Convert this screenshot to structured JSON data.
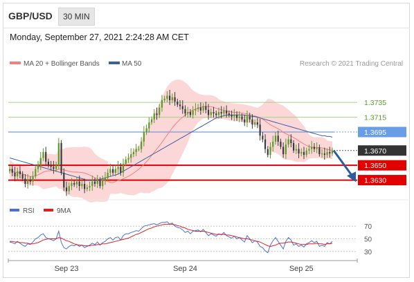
{
  "header": {
    "pair": "GBP/USD",
    "timeframe": "30 MIN",
    "datetime": "Monday, September 27, 2021 2:24:28 AM CET"
  },
  "legend": {
    "ma20": "MA 20 + Bollinger Bands",
    "ma50": "MA 50",
    "source": "Research © 2021 Trading Central",
    "rsi": "RSI",
    "rsi_ma": "9MA"
  },
  "colors": {
    "ma20": "#f08080",
    "ma50": "#3b5fa0",
    "band": "#fbd0d0",
    "up": "#5a9a2a",
    "down": "#3a3a3a",
    "resistance": "#a8d08d",
    "pivot": "#6a9de8",
    "support": "#e00000",
    "rsi": "#4a6fd8",
    "rsi_ma": "#e02020",
    "arrow": "#2b5c9e"
  },
  "chart_data": [
    {
      "type": "candlestick",
      "ylim": [
        1.361,
        1.378
      ],
      "x_ticks": [
        {
          "label": "Sep 23",
          "index": 22
        },
        {
          "label": "Sep 24",
          "index": 68
        },
        {
          "label": "Sep 25",
          "index": 113
        }
      ],
      "levels": [
        {
          "value": 1.3735,
          "label": "1.3735",
          "role": "resistance"
        },
        {
          "value": 1.3715,
          "label": "1.3715",
          "role": "resistance"
        },
        {
          "value": 1.3695,
          "label": "1.3695",
          "role": "pivot"
        },
        {
          "value": 1.367,
          "label": "1.3670",
          "role": "last"
        },
        {
          "value": 1.365,
          "label": "1.3650",
          "role": "support"
        },
        {
          "value": 1.363,
          "label": "1.3630",
          "role": "support"
        }
      ],
      "close": [
        1.3645,
        1.364,
        1.3635,
        1.3642,
        1.3638,
        1.3632,
        1.3625,
        1.363,
        1.3628,
        1.3635,
        1.3645,
        1.365,
        1.366,
        1.3668,
        1.3655,
        1.365,
        1.3648,
        1.3645,
        1.365,
        1.368,
        1.364,
        1.362,
        1.3615,
        1.3622,
        1.3626,
        1.3624,
        1.3628,
        1.3622,
        1.3625,
        1.3618,
        1.362,
        1.3622,
        1.3628,
        1.3625,
        1.363,
        1.3622,
        1.363,
        1.3633,
        1.364,
        1.3645,
        1.364,
        1.3645,
        1.3648,
        1.364,
        1.3652,
        1.3658,
        1.366,
        1.3665,
        1.3668,
        1.3672,
        1.3672,
        1.3682,
        1.3695,
        1.37,
        1.3708,
        1.3712,
        1.372,
        1.3718,
        1.3728,
        1.3738,
        1.374,
        1.3744,
        1.3738,
        1.3742,
        1.3736,
        1.3732,
        1.373,
        1.3726,
        1.372,
        1.3722,
        1.3718,
        1.3724,
        1.3726,
        1.3728,
        1.3724,
        1.373,
        1.3725,
        1.3718,
        1.3722,
        1.372,
        1.3718,
        1.3722,
        1.372,
        1.3724,
        1.372,
        1.3718,
        1.3716,
        1.3718,
        1.3714,
        1.3716,
        1.3712,
        1.3708,
        1.3716,
        1.3712,
        1.3705,
        1.3708,
        1.3705,
        1.369,
        1.3685,
        1.3672,
        1.3664,
        1.3675,
        1.3682,
        1.369,
        1.3682,
        1.3675,
        1.3665,
        1.3678,
        1.3685,
        1.368,
        1.367,
        1.3672,
        1.3666,
        1.3668,
        1.3664,
        1.367,
        1.3672,
        1.3675,
        1.3672,
        1.3674,
        1.3665,
        1.3666,
        1.3664,
        1.3668,
        1.3666,
        1.367
      ],
      "ma50": [
        1.366,
        1.3659,
        1.3658,
        1.3657,
        1.3656,
        1.3655,
        1.3654,
        1.3653,
        1.3652,
        1.3651,
        1.365,
        1.3649,
        1.3648,
        1.3647,
        1.3646,
        1.3645,
        1.3644,
        1.3643,
        1.3642,
        1.3641,
        1.364,
        1.3639,
        1.3638,
        1.3637,
        1.3636,
        1.3635,
        1.3634,
        1.3633,
        1.3632,
        1.3631,
        1.363,
        1.363,
        1.363,
        1.363,
        1.363,
        1.3631,
        1.3632,
        1.3633,
        1.3634,
        1.3635,
        1.3636,
        1.3637,
        1.3638,
        1.364,
        1.3642,
        1.3644,
        1.3646,
        1.3648,
        1.365,
        1.3652,
        1.3654,
        1.3656,
        1.3658,
        1.366,
        1.3662,
        1.3664,
        1.3666,
        1.3668,
        1.367,
        1.3672,
        1.3674,
        1.3676,
        1.3678,
        1.368,
        1.3682,
        1.3684,
        1.3686,
        1.3688,
        1.369,
        1.3692,
        1.3694,
        1.3696,
        1.3698,
        1.37,
        1.3702,
        1.3704,
        1.3706,
        1.3708,
        1.371,
        1.3712,
        1.3714,
        1.3715,
        1.3716,
        1.3717,
        1.3718,
        1.3718,
        1.3718,
        1.3718,
        1.3718,
        1.3718,
        1.3718,
        1.3718,
        1.3717,
        1.3717,
        1.3716,
        1.3716,
        1.3715,
        1.3714,
        1.3713,
        1.3712,
        1.3711,
        1.371,
        1.3709,
        1.3708,
        1.3707,
        1.3706,
        1.3705,
        1.3704,
        1.3703,
        1.3702,
        1.3701,
        1.37,
        1.3699,
        1.3698,
        1.3697,
        1.3696,
        1.3695,
        1.3694,
        1.3693,
        1.3692,
        1.3691,
        1.369,
        1.369,
        1.3689,
        1.3689,
        1.3688
      ]
    },
    {
      "type": "line",
      "name": "RSI",
      "ylim": [
        20,
        80
      ],
      "y_ticks": [
        70,
        50,
        30
      ],
      "rsi": [
        45,
        44,
        42,
        46,
        43,
        40,
        38,
        42,
        41,
        45,
        50,
        52,
        56,
        58,
        52,
        50,
        49,
        47,
        50,
        62,
        44,
        36,
        34,
        38,
        40,
        39,
        41,
        38,
        40,
        36,
        38,
        40,
        43,
        41,
        45,
        40,
        44,
        46,
        50,
        52,
        48,
        52,
        53,
        48,
        55,
        58,
        58,
        60,
        61,
        63,
        62,
        66,
        70,
        71,
        72,
        73,
        74,
        72,
        74,
        76,
        76,
        77,
        73,
        75,
        70,
        68,
        67,
        64,
        60,
        62,
        58,
        62,
        63,
        64,
        61,
        65,
        60,
        55,
        58,
        56,
        54,
        58,
        56,
        60,
        55,
        53,
        51,
        54,
        50,
        52,
        48,
        45,
        55,
        50,
        44,
        47,
        45,
        38,
        36,
        31,
        28,
        40,
        47,
        52,
        46,
        40,
        34,
        46,
        52,
        48,
        40,
        42,
        38,
        40,
        37,
        42,
        44,
        47,
        44,
        46,
        38,
        40,
        38,
        44,
        42,
        46
      ],
      "rsi_ma": [
        46,
        46,
        45,
        45,
        44,
        44,
        43,
        43,
        42,
        42,
        43,
        44,
        46,
        48,
        49,
        50,
        50,
        50,
        50,
        52,
        51,
        49,
        47,
        46,
        44,
        42,
        41,
        40,
        40,
        39,
        39,
        39,
        40,
        40,
        41,
        41,
        42,
        42,
        43,
        44,
        45,
        46,
        47,
        48,
        49,
        50,
        51,
        53,
        55,
        57,
        58,
        60,
        62,
        64,
        66,
        67,
        69,
        70,
        71,
        72,
        73,
        73,
        73,
        73,
        72,
        71,
        70,
        68,
        67,
        65,
        64,
        63,
        62,
        62,
        62,
        62,
        61,
        60,
        59,
        58,
        57,
        57,
        57,
        57,
        56,
        56,
        55,
        54,
        53,
        52,
        51,
        50,
        50,
        49,
        48,
        47,
        46,
        45,
        43,
        41,
        39,
        38,
        39,
        40,
        42,
        43,
        43,
        44,
        45,
        45,
        44,
        43,
        42,
        41,
        41,
        41,
        42,
        42,
        42,
        43,
        42,
        42,
        41,
        42,
        42,
        43
      ]
    }
  ]
}
